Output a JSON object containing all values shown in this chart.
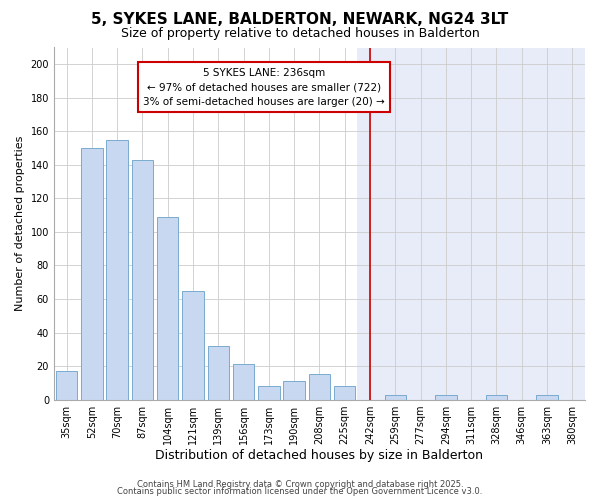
{
  "title": "5, SYKES LANE, BALDERTON, NEWARK, NG24 3LT",
  "subtitle": "Size of property relative to detached houses in Balderton",
  "xlabel": "Distribution of detached houses by size in Balderton",
  "ylabel": "Number of detached properties",
  "bar_color": "#c8d8f0",
  "bar_edge_color": "#7aaad0",
  "categories": [
    "35sqm",
    "52sqm",
    "70sqm",
    "87sqm",
    "104sqm",
    "121sqm",
    "139sqm",
    "156sqm",
    "173sqm",
    "190sqm",
    "208sqm",
    "225sqm",
    "242sqm",
    "259sqm",
    "277sqm",
    "294sqm",
    "311sqm",
    "328sqm",
    "346sqm",
    "363sqm",
    "380sqm"
  ],
  "values": [
    17,
    150,
    155,
    143,
    109,
    65,
    32,
    21,
    8,
    11,
    15,
    8,
    0,
    3,
    0,
    3,
    0,
    3,
    0,
    3,
    0
  ],
  "ylim": [
    0,
    210
  ],
  "yticks": [
    0,
    20,
    40,
    60,
    80,
    100,
    120,
    140,
    160,
    180,
    200
  ],
  "vline_color": "#cc0000",
  "annotation_title": "5 SYKES LANE: 236sqm",
  "annotation_line1": "← 97% of detached houses are smaller (722)",
  "annotation_line2": "3% of semi-detached houses are larger (20) →",
  "annotation_box_color": "#ffffff",
  "annotation_box_edge": "#cc0000",
  "grid_color": "#cccccc",
  "bg_left": "#ffffff",
  "bg_right": "#e8ecf8",
  "footer1": "Contains HM Land Registry data © Crown copyright and database right 2025.",
  "footer2": "Contains public sector information licensed under the Open Government Licence v3.0.",
  "title_fontsize": 11,
  "subtitle_fontsize": 9,
  "xlabel_fontsize": 9,
  "ylabel_fontsize": 8,
  "tick_fontsize": 7,
  "footer_fontsize": 6,
  "vline_bar_idx": 12
}
